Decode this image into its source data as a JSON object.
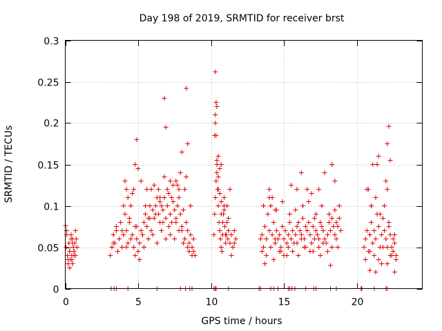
{
  "chart_data": {
    "type": "scatter",
    "title": "Day 198 of 2019, SRMTID for receiver brst",
    "xlabel": "GPS time / hours",
    "ylabel": "SRMTID / TECUs",
    "xlim": [
      0,
      24.5
    ],
    "ylim": [
      0,
      0.3
    ],
    "xticks": [
      0,
      5,
      10,
      15,
      20
    ],
    "xtick_labels": [
      "0",
      "5",
      "10",
      "15",
      "20"
    ],
    "yticks": [
      0,
      0.05,
      0.1,
      0.15,
      0.2,
      0.25,
      0.3
    ],
    "ytick_labels": [
      "0",
      "0.05",
      "0.1",
      "0.15",
      "0.2",
      "0.25",
      "0.3"
    ],
    "grid": true,
    "marker": "+",
    "color": "#e00000",
    "series": [
      {
        "name": "SRMTID",
        "x": [
          0.05,
          0.1,
          0.15,
          0.2,
          0.25,
          0.3,
          0.35,
          0.4,
          0.45,
          0.5,
          0.55,
          0.6,
          0.65,
          0.7,
          0.75,
          0.8,
          0.1,
          0.2,
          0.3,
          0.4,
          0.5,
          0.6,
          0.7,
          0.3,
          0.45,
          0.6,
          0.02,
          0.5,
          3.1,
          3.2,
          3.3,
          3.4,
          3.5,
          3.6,
          3.7,
          3.8,
          3.9,
          4.0,
          4.1,
          4.2,
          4.3,
          4.4,
          4.5,
          4.6,
          4.7,
          4.8,
          4.9,
          5.0,
          5.1,
          5.2,
          5.3,
          5.4,
          5.5,
          5.6,
          5.7,
          5.8,
          5.9,
          6.0,
          6.1,
          6.2,
          6.3,
          6.4,
          6.5,
          6.6,
          6.7,
          6.8,
          6.9,
          7.0,
          7.1,
          7.2,
          7.3,
          7.4,
          7.5,
          7.6,
          7.7,
          7.8,
          7.9,
          8.0,
          8.1,
          8.2,
          8.3,
          8.4,
          8.5,
          8.6,
          8.7,
          8.8,
          8.9,
          3.3,
          3.6,
          3.9,
          4.2,
          4.5,
          4.8,
          5.1,
          5.4,
          5.7,
          6.0,
          6.3,
          6.6,
          6.9,
          7.2,
          7.5,
          7.8,
          8.1,
          8.4,
          8.7,
          4.0,
          4.4,
          4.9,
          5.3,
          5.8,
          6.2,
          6.7,
          7.1,
          7.6,
          8.0,
          8.5,
          3.5,
          4.1,
          4.6,
          5.0,
          5.6,
          6.1,
          6.5,
          7.0,
          7.4,
          7.9,
          8.3,
          8.8,
          4.3,
          4.7,
          5.2,
          5.5,
          6.4,
          6.8,
          7.3,
          7.7,
          8.2,
          8.6,
          4.2,
          4.8,
          4.9,
          5.9,
          6.5,
          6.8,
          6.9,
          7.2,
          7.6,
          7.8,
          8.0,
          8.3,
          8.4,
          10.2,
          10.25,
          10.3,
          10.35,
          10.4,
          10.45,
          10.5,
          10.55,
          10.6,
          10.65,
          10.7,
          10.75,
          10.8,
          10.85,
          10.9,
          10.95,
          11.0,
          11.05,
          11.1,
          11.15,
          11.2,
          11.3,
          11.4,
          11.5,
          11.6,
          11.7,
          10.25,
          10.3,
          10.4,
          10.5,
          10.6,
          10.7,
          10.8,
          10.9,
          11.0,
          11.2,
          11.4,
          11.6,
          10.3,
          10.4,
          10.5,
          10.6,
          10.7,
          10.9,
          11.1,
          11.3,
          10.35,
          10.3,
          10.35,
          10.4,
          10.5,
          10.7,
          13.4,
          13.5,
          13.6,
          13.7,
          13.8,
          13.9,
          14.0,
          14.1,
          14.2,
          14.3,
          14.4,
          14.5,
          14.6,
          14.7,
          14.8,
          14.9,
          15.0,
          15.1,
          15.2,
          15.3,
          15.4,
          15.5,
          15.6,
          15.7,
          15.8,
          15.9,
          16.0,
          16.1,
          16.2,
          16.3,
          16.4,
          16.5,
          16.6,
          16.7,
          16.8,
          16.9,
          17.0,
          17.1,
          17.2,
          17.3,
          17.4,
          17.5,
          17.6,
          17.7,
          17.8,
          17.9,
          18.0,
          18.1,
          18.2,
          18.3,
          18.4,
          18.5,
          18.6,
          18.7,
          18.8,
          18.9,
          13.5,
          13.8,
          14.1,
          14.4,
          14.7,
          15.0,
          15.3,
          15.6,
          15.9,
          16.2,
          16.5,
          16.8,
          17.1,
          17.4,
          17.7,
          18.0,
          18.3,
          18.6,
          13.6,
          14.0,
          14.5,
          14.9,
          15.4,
          15.8,
          16.3,
          16.7,
          17.2,
          17.6,
          18.1,
          18.5,
          18.8,
          14.0,
          14.2,
          14.4,
          15.5,
          15.9,
          16.2,
          16.6,
          16.9,
          17.4,
          17.8,
          18.3,
          18.5,
          13.7,
          14.3,
          14.8,
          15.2,
          16.0,
          16.4,
          17.0,
          17.5,
          18.2,
          18.7,
          20.5,
          20.6,
          20.7,
          20.8,
          20.9,
          21.0,
          21.1,
          21.2,
          21.3,
          21.4,
          21.5,
          21.6,
          21.7,
          21.8,
          21.9,
          22.0,
          22.1,
          22.2,
          22.3,
          22.4,
          22.5,
          22.6,
          22.7,
          20.6,
          20.9,
          21.2,
          21.5,
          21.8,
          22.1,
          22.4,
          22.7,
          20.7,
          21.0,
          21.3,
          21.6,
          21.9,
          22.2,
          22.5,
          20.8,
          21.1,
          21.4,
          21.5,
          22.0,
          22.1,
          22.3,
          22.2,
          20.9,
          21.3,
          21.7,
          22.3,
          22.6,
          22.1,
          21.0,
          22.6
        ],
        "y": [
          0.05,
          0.065,
          0.04,
          0.03,
          0.055,
          0.045,
          0.035,
          0.06,
          0.04,
          0.03,
          0.05,
          0.045,
          0.055,
          0.04,
          0.06,
          0.05,
          0.07,
          0.035,
          0.045,
          0.065,
          0.055,
          0.04,
          0.07,
          0.025,
          0.035,
          0.045,
          0.076,
          0.06,
          0.04,
          0.05,
          0.065,
          0.055,
          0.075,
          0.045,
          0.06,
          0.08,
          0.05,
          0.065,
          0.09,
          0.07,
          0.055,
          0.08,
          0.1,
          0.065,
          0.05,
          0.075,
          0.06,
          0.045,
          0.055,
          0.07,
          0.065,
          0.08,
          0.09,
          0.075,
          0.085,
          0.1,
          0.07,
          0.095,
          0.085,
          0.1,
          0.11,
          0.09,
          0.08,
          0.1,
          0.095,
          0.11,
          0.085,
          0.1,
          0.115,
          0.09,
          0.08,
          0.105,
          0.095,
          0.085,
          0.1,
          0.11,
          0.09,
          0.075,
          0.095,
          0.06,
          0.08,
          0.07,
          0.055,
          0.065,
          0.05,
          0.045,
          0.04,
          0.055,
          0.045,
          0.07,
          0.05,
          0.06,
          0.04,
          0.035,
          0.05,
          0.06,
          0.065,
          0.055,
          0.07,
          0.06,
          0.065,
          0.06,
          0.07,
          0.055,
          0.05,
          0.04,
          0.1,
          0.085,
          0.075,
          0.065,
          0.085,
          0.09,
          0.08,
          0.075,
          0.08,
          0.07,
          0.045,
          0.07,
          0.13,
          0.115,
          0.145,
          0.12,
          0.125,
          0.105,
          0.12,
          0.125,
          0.14,
          0.135,
          0.06,
          0.11,
          0.12,
          0.13,
          0.1,
          0.12,
          0.135,
          0.11,
          0.125,
          0.12,
          0.1,
          0.12,
          0.15,
          0.18,
          0.12,
          0.11,
          0.23,
          0.195,
          0.13,
          0.13,
          0.12,
          0.165,
          0.242,
          0.175,
          0.065,
          0.09,
          0.11,
          0.13,
          0.15,
          0.12,
          0.1,
          0.08,
          0.07,
          0.06,
          0.05,
          0.045,
          0.065,
          0.09,
          0.1,
          0.075,
          0.055,
          0.065,
          0.08,
          0.06,
          0.07,
          0.055,
          0.065,
          0.05,
          0.07,
          0.06,
          0.185,
          0.21,
          0.14,
          0.12,
          0.145,
          0.105,
          0.08,
          0.095,
          0.065,
          0.085,
          0.04,
          0.055,
          0.2,
          0.155,
          0.135,
          0.115,
          0.09,
          0.11,
          0.1,
          0.12,
          0.225,
          0.262,
          0.185,
          0.22,
          0.16,
          0.15,
          0.06,
          0.065,
          0.05,
          0.075,
          0.06,
          0.09,
          0.07,
          0.1,
          0.065,
          0.08,
          0.055,
          0.07,
          0.06,
          0.065,
          0.05,
          0.075,
          0.06,
          0.07,
          0.055,
          0.065,
          0.08,
          0.06,
          0.07,
          0.055,
          0.065,
          0.075,
          0.08,
          0.07,
          0.065,
          0.085,
          0.06,
          0.075,
          0.07,
          0.08,
          0.065,
          0.055,
          0.075,
          0.085,
          0.07,
          0.065,
          0.06,
          0.08,
          0.075,
          0.07,
          0.06,
          0.055,
          0.065,
          0.08,
          0.07,
          0.085,
          0.075,
          0.065,
          0.08,
          0.075,
          0.085,
          0.07,
          0.045,
          0.04,
          0.05,
          0.06,
          0.045,
          0.04,
          0.05,
          0.045,
          0.055,
          0.06,
          0.05,
          0.045,
          0.06,
          0.05,
          0.055,
          0.045,
          0.05,
          0.06,
          0.1,
          0.11,
          0.095,
          0.105,
          0.09,
          0.095,
          0.1,
          0.105,
          0.09,
          0.1,
          0.09,
          0.095,
          0.1,
          0.12,
          0.11,
          0.095,
          0.125,
          0.12,
          0.14,
          0.12,
          0.115,
          0.12,
          0.14,
          0.15,
          0.13,
          0.03,
          0.035,
          0.045,
          0.04,
          0.04,
          0.05,
          0.045,
          0.04,
          0.028,
          0.05,
          0.05,
          0.06,
          0.07,
          0.045,
          0.065,
          0.08,
          0.055,
          0.07,
          0.06,
          0.09,
          0.075,
          0.05,
          0.065,
          0.085,
          0.07,
          0.06,
          0.05,
          0.075,
          0.065,
          0.05,
          0.045,
          0.055,
          0.04,
          0.035,
          0.045,
          0.04,
          0.035,
          0.05,
          0.03,
          0.04,
          0.035,
          0.12,
          0.1,
          0.11,
          0.09,
          0.1,
          0.08,
          0.06,
          0.12,
          0.15,
          0.15,
          0.16,
          0.13,
          0.175,
          0.155,
          0.196,
          0.022,
          0.02,
          0.03,
          0.04,
          0.02,
          0.12,
          0.1,
          0.065
        ]
      }
    ],
    "bottom_marks_x": [
      3.15,
      3.35,
      3.5,
      4.3,
      6.3,
      7.9,
      8.25,
      8.55,
      8.7,
      10.2,
      10.3,
      10.35,
      11.2,
      13.3,
      13.4,
      14.1,
      14.3,
      14.6,
      15.3,
      15.4,
      15.55,
      15.75,
      16.5,
      17.05,
      17.2,
      18.2,
      18.6,
      20.3,
      20.35,
      21.2,
      22.0,
      22.1
    ]
  }
}
